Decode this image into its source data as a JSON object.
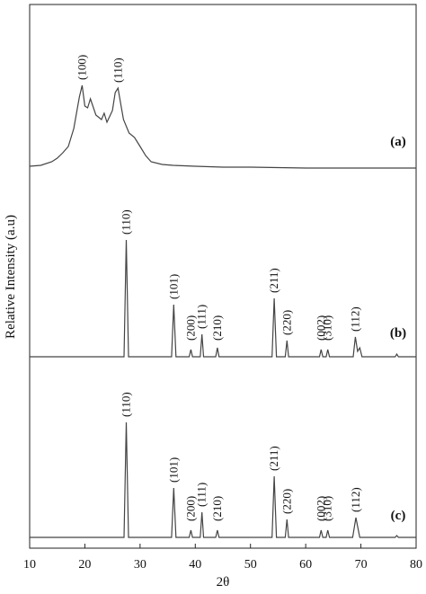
{
  "chart_data": {
    "type": "line",
    "xlabel": "2θ",
    "ylabel": "Relative Intensity (a.u)",
    "xlim": [
      10,
      80
    ],
    "xticks": [
      10,
      20,
      30,
      40,
      50,
      60,
      70,
      80
    ],
    "color": "#444444",
    "series": [
      {
        "name": "(a)",
        "x": [
          10,
          12,
          14,
          15,
          16,
          17,
          18,
          19,
          19.5,
          20,
          20.5,
          21,
          22,
          23,
          23.5,
          24,
          25,
          25.5,
          26,
          26.5,
          27,
          28,
          29,
          30,
          31,
          32,
          34,
          36,
          40,
          45,
          50,
          60,
          70,
          80
        ],
        "values": [
          3,
          4,
          8,
          12,
          18,
          25,
          45,
          80,
          93,
          70,
          68,
          78,
          60,
          55,
          62,
          52,
          65,
          85,
          90,
          72,
          55,
          40,
          35,
          25,
          15,
          8,
          5,
          4,
          3,
          2,
          2,
          1,
          1,
          1
        ]
      },
      {
        "name": "(b)",
        "x": [
          10,
          27.1,
          27.5,
          27.9,
          35.7,
          36.1,
          36.5,
          38.9,
          39.2,
          39.5,
          40.9,
          41.2,
          41.5,
          43.7,
          44,
          44.3,
          53.9,
          54.3,
          54.7,
          56.3,
          56.6,
          56.9,
          62.5,
          62.8,
          63.1,
          63.7,
          64,
          64.3,
          68.6,
          69,
          69.4,
          69.8,
          70.2,
          76.2,
          76.5,
          76.8,
          80
        ],
        "values": [
          0,
          0,
          130,
          0,
          0,
          58,
          0,
          0,
          8,
          0,
          0,
          25,
          0,
          0,
          10,
          0,
          0,
          65,
          0,
          0,
          18,
          0,
          0,
          8,
          0,
          0,
          8,
          0,
          0,
          22,
          6,
          10,
          0,
          0,
          3,
          0,
          0
        ]
      },
      {
        "name": "(c)",
        "x": [
          10,
          27.1,
          27.5,
          27.9,
          35.7,
          36.1,
          36.5,
          38.9,
          39.2,
          39.5,
          40.9,
          41.2,
          41.5,
          43.7,
          44,
          44.3,
          53.9,
          54.3,
          54.7,
          56.3,
          56.6,
          56.9,
          62.5,
          62.8,
          63.1,
          63.7,
          64,
          64.3,
          68.5,
          69.1,
          69.8,
          76.2,
          76.5,
          76.8,
          80
        ],
        "values": [
          0,
          0,
          128,
          0,
          0,
          55,
          0,
          0,
          8,
          0,
          0,
          28,
          0,
          0,
          8,
          0,
          0,
          68,
          0,
          0,
          20,
          0,
          0,
          8,
          0,
          0,
          8,
          0,
          0,
          22,
          0,
          0,
          2,
          0,
          0
        ]
      }
    ],
    "annotations": [
      {
        "text": "(100)",
        "x": 19.5,
        "series": 0
      },
      {
        "text": "(110)",
        "x": 26,
        "series": 0
      },
      {
        "text": "(110)",
        "x": 27.5,
        "series": 1
      },
      {
        "text": "(101)",
        "x": 36.1,
        "series": 1
      },
      {
        "text": "(200)",
        "x": 39.2,
        "series": 1
      },
      {
        "text": "(111)",
        "x": 41.2,
        "series": 1
      },
      {
        "text": "(210)",
        "x": 44,
        "series": 1
      },
      {
        "text": "(211)",
        "x": 54.3,
        "series": 1
      },
      {
        "text": "(220)",
        "x": 56.6,
        "series": 1
      },
      {
        "text": "(002)",
        "x": 62.8,
        "series": 1
      },
      {
        "text": "(310)",
        "x": 64,
        "series": 1
      },
      {
        "text": "(112)",
        "x": 69,
        "series": 1
      },
      {
        "text": "(110)",
        "x": 27.5,
        "series": 2
      },
      {
        "text": "(101)",
        "x": 36.1,
        "series": 2
      },
      {
        "text": "(200)",
        "x": 39.2,
        "series": 2
      },
      {
        "text": "(111)",
        "x": 41.2,
        "series": 2
      },
      {
        "text": "(210)",
        "x": 44,
        "series": 2
      },
      {
        "text": "(211)",
        "x": 54.3,
        "series": 2
      },
      {
        "text": "(220)",
        "x": 56.6,
        "series": 2
      },
      {
        "text": "(002)",
        "x": 62.8,
        "series": 2
      },
      {
        "text": "(310)",
        "x": 64,
        "series": 2
      },
      {
        "text": "(112)",
        "x": 69.1,
        "series": 2
      }
    ]
  }
}
